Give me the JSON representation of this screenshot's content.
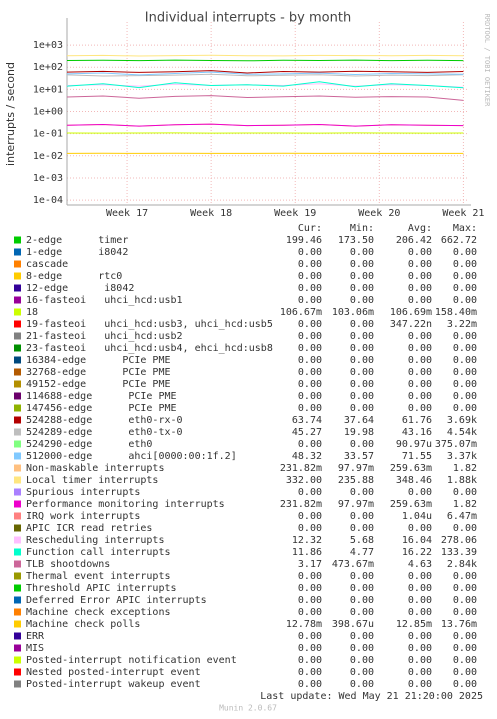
{
  "chart_data": {
    "type": "line",
    "title": "Individual interrupts - by month",
    "y_label": "interrupts / second",
    "side_note": "RRDTOOL / TOBI OETIKER",
    "log_scale": true,
    "grid": true,
    "x": [
      0,
      3,
      6,
      9,
      12,
      15,
      18,
      21,
      24,
      27,
      30,
      33
    ],
    "xlim": [
      0,
      33.3
    ],
    "xticks": [
      {
        "value": 5,
        "label": "Week 17"
      },
      {
        "value": 12,
        "label": "Week 18"
      },
      {
        "value": 19,
        "label": "Week 19"
      },
      {
        "value": 26,
        "label": "Week 20"
      },
      {
        "value": 33,
        "label": "Week 21"
      }
    ],
    "ylim": [
      6e-05,
      11000
    ],
    "yticks": [
      {
        "value": 0.0001,
        "label": "1e-04"
      },
      {
        "value": 0.001,
        "label": "1e-03"
      },
      {
        "value": 0.01,
        "label": "1e-02"
      },
      {
        "value": 0.1,
        "label": "1e-01"
      },
      {
        "value": 1,
        "label": "1e+00"
      },
      {
        "value": 10,
        "label": "1e+01"
      },
      {
        "value": 100,
        "label": "1e+02"
      },
      {
        "value": 1000,
        "label": "1e+03"
      }
    ],
    "legend_columns": [
      "Cur:",
      "Min:",
      "Avg:",
      "Max:"
    ],
    "series": [
      {
        "name": "2-edge      timer",
        "color": "#00cc00",
        "stats": [
          "199.46",
          "173.50",
          "206.42",
          "662.72"
        ],
        "values": [
          200,
          205,
          198,
          210,
          200,
          195,
          205,
          200,
          210,
          198,
          205,
          199.46
        ]
      },
      {
        "name": "1-edge      i8042",
        "color": "#0066b3",
        "stats": [
          "0.00",
          "0.00",
          "0.00",
          "0.00"
        ]
      },
      {
        "name": "cascade",
        "color": "#ff8000",
        "stats": [
          "0.00",
          "0.00",
          "0.00",
          "0.00"
        ]
      },
      {
        "name": "8-edge      rtc0",
        "color": "#ffcc00",
        "stats": [
          "0.00",
          "0.00",
          "0.00",
          "0.00"
        ]
      },
      {
        "name": "12-edge      i8042",
        "color": "#330099",
        "stats": [
          "0.00",
          "0.00",
          "0.00",
          "0.00"
        ]
      },
      {
        "name": "16-fasteoi   uhci_hcd:usb1",
        "color": "#990099",
        "stats": [
          "0.00",
          "0.00",
          "0.00",
          "0.00"
        ]
      },
      {
        "name": "18",
        "color": "#ccff00",
        "stats": [
          "106.67m",
          "103.06m",
          "106.69m",
          "158.40m"
        ],
        "values": [
          0.107,
          0.106,
          0.107,
          0.108,
          0.106,
          0.107,
          0.107,
          0.106,
          0.108,
          0.107,
          0.106,
          0.10667
        ]
      },
      {
        "name": "19-fasteoi   uhci_hcd:usb3, uhci_hcd:usb5",
        "color": "#ff0000",
        "stats": [
          "0.00",
          "0.00",
          "347.22n",
          "3.22m"
        ]
      },
      {
        "name": "21-fasteoi   uhci_hcd:usb2",
        "color": "#808080",
        "stats": [
          "0.00",
          "0.00",
          "0.00",
          "0.00"
        ]
      },
      {
        "name": "23-fasteoi   uhci_hcd:usb4, ehci_hcd:usb8",
        "color": "#008f00",
        "stats": [
          "0.00",
          "0.00",
          "0.00",
          "0.00"
        ]
      },
      {
        "name": "16384-edge      PCIe PME",
        "color": "#00487d",
        "stats": [
          "0.00",
          "0.00",
          "0.00",
          "0.00"
        ]
      },
      {
        "name": "32768-edge      PCIe PME",
        "color": "#b35a00",
        "stats": [
          "0.00",
          "0.00",
          "0.00",
          "0.00"
        ]
      },
      {
        "name": "49152-edge      PCIe PME",
        "color": "#b38f00",
        "stats": [
          "0.00",
          "0.00",
          "0.00",
          "0.00"
        ]
      },
      {
        "name": "114688-edge      PCIe PME",
        "color": "#6b006b",
        "stats": [
          "0.00",
          "0.00",
          "0.00",
          "0.00"
        ]
      },
      {
        "name": "147456-edge      PCIe PME",
        "color": "#8fb300",
        "stats": [
          "0.00",
          "0.00",
          "0.00",
          "0.00"
        ]
      },
      {
        "name": "524288-edge      eth0-rx-0",
        "color": "#b30000",
        "stats": [
          "63.74",
          "37.64",
          "61.76",
          "3.69k"
        ],
        "values": [
          60,
          65,
          58,
          62,
          70,
          55,
          64,
          60,
          66,
          62,
          58,
          63.74
        ]
      },
      {
        "name": "524289-edge      eth0-tx-0",
        "color": "#bebebe",
        "stats": [
          "45.27",
          "19.98",
          "43.16",
          "4.54k"
        ],
        "values": [
          45,
          40,
          42,
          44,
          48,
          41,
          43,
          46,
          40,
          44,
          42,
          45.27
        ]
      },
      {
        "name": "524290-edge      eth0",
        "color": "#80ff80",
        "stats": [
          "0.00",
          "0.00",
          "90.97u",
          "375.07m"
        ]
      },
      {
        "name": "512000-edge      ahci[0000:00:1f.2]",
        "color": "#80c9ff",
        "stats": [
          "48.32",
          "33.57",
          "71.55",
          "3.37k"
        ],
        "values": [
          50,
          55,
          45,
          52,
          60,
          48,
          50,
          54,
          47,
          52,
          50,
          48.32
        ]
      },
      {
        "name": "Non-maskable interrupts",
        "color": "#ffc080",
        "stats": [
          "231.82m",
          "97.97m",
          "259.63m",
          "1.82"
        ],
        "values": [
          0.24,
          0.26,
          0.22,
          0.25,
          0.27,
          0.23,
          0.24,
          0.26,
          0.22,
          0.25,
          0.24,
          0.23182
        ]
      },
      {
        "name": "Local timer interrupts",
        "color": "#ffe680",
        "stats": [
          "332.00",
          "235.88",
          "348.46",
          "1.88k"
        ],
        "values": [
          330,
          340,
          320,
          335,
          345,
          330,
          325,
          340,
          335,
          330,
          340,
          332
        ]
      },
      {
        "name": "Spurious interrupts",
        "color": "#aa80ff",
        "stats": [
          "0.00",
          "0.00",
          "0.00",
          "0.00"
        ]
      },
      {
        "name": "Performance monitoring interrupts",
        "color": "#ee00cc",
        "stats": [
          "231.82m",
          "97.97m",
          "259.63m",
          "1.82"
        ],
        "values": [
          0.24,
          0.26,
          0.22,
          0.25,
          0.27,
          0.23,
          0.24,
          0.26,
          0.22,
          0.25,
          0.24,
          0.23182
        ]
      },
      {
        "name": "IRQ work interrupts",
        "color": "#ff8080",
        "stats": [
          "0.00",
          "0.00",
          "1.04u",
          "6.47m"
        ]
      },
      {
        "name": "APIC ICR read retries",
        "color": "#666600",
        "stats": [
          "0.00",
          "0.00",
          "0.00",
          "0.00"
        ]
      },
      {
        "name": "Rescheduling interrupts",
        "color": "#ffbfff",
        "stats": [
          "12.32",
          "5.68",
          "16.04",
          "278.06"
        ],
        "values": [
          15,
          16,
          14,
          17,
          15,
          16,
          15,
          18,
          14,
          16,
          15,
          12.32
        ]
      },
      {
        "name": "Function call interrupts",
        "color": "#00ffcc",
        "stats": [
          "11.86",
          "4.77",
          "16.22",
          "133.39"
        ],
        "values": [
          14,
          18,
          12,
          20,
          15,
          16,
          14,
          22,
          13,
          18,
          15,
          11.86
        ]
      },
      {
        "name": "TLB shootdowns",
        "color": "#cc6699",
        "stats": [
          "3.17",
          "473.67m",
          "4.63",
          "2.84k"
        ],
        "values": [
          4.5,
          5,
          4,
          4.8,
          5.2,
          4.3,
          4.6,
          5,
          4.4,
          4.7,
          4.5,
          3.17
        ]
      },
      {
        "name": "Thermal event interrupts",
        "color": "#999900",
        "stats": [
          "0.00",
          "0.00",
          "0.00",
          "0.00"
        ]
      },
      {
        "name": "Threshold APIC interrupts",
        "color": "#00cc00",
        "stats": [
          "0.00",
          "0.00",
          "0.00",
          "0.00"
        ]
      },
      {
        "name": "Deferred Error APIC interrupts",
        "color": "#0066b3",
        "stats": [
          "0.00",
          "0.00",
          "0.00",
          "0.00"
        ]
      },
      {
        "name": "Machine check exceptions",
        "color": "#ff8000",
        "stats": [
          "0.00",
          "0.00",
          "0.00",
          "0.00"
        ]
      },
      {
        "name": "Machine check polls",
        "color": "#ffcc00",
        "stats": [
          "12.78m",
          "398.67u",
          "12.85m",
          "13.76m"
        ],
        "values": [
          0.0128,
          0.0129,
          0.0128,
          0.0129,
          0.0128,
          0.0128,
          0.0129,
          0.0128,
          0.0129,
          0.0128,
          0.0128,
          0.01278
        ]
      },
      {
        "name": "ERR",
        "color": "#330099",
        "stats": [
          "0.00",
          "0.00",
          "0.00",
          "0.00"
        ]
      },
      {
        "name": "MIS",
        "color": "#990099",
        "stats": [
          "0.00",
          "0.00",
          "0.00",
          "0.00"
        ]
      },
      {
        "name": "Posted-interrupt notification event",
        "color": "#ccff00",
        "stats": [
          "0.00",
          "0.00",
          "0.00",
          "0.00"
        ]
      },
      {
        "name": "Nested posted-interrupt event",
        "color": "#ff0000",
        "stats": [
          "0.00",
          "0.00",
          "0.00",
          "0.00"
        ]
      },
      {
        "name": "Posted-interrupt wakeup event",
        "color": "#808080",
        "stats": [
          "0.00",
          "0.00",
          "0.00",
          "0.00"
        ]
      }
    ],
    "last_update": "Last update: Wed May 21 21:20:00 2025",
    "footer": "Munin 2.0.67"
  }
}
